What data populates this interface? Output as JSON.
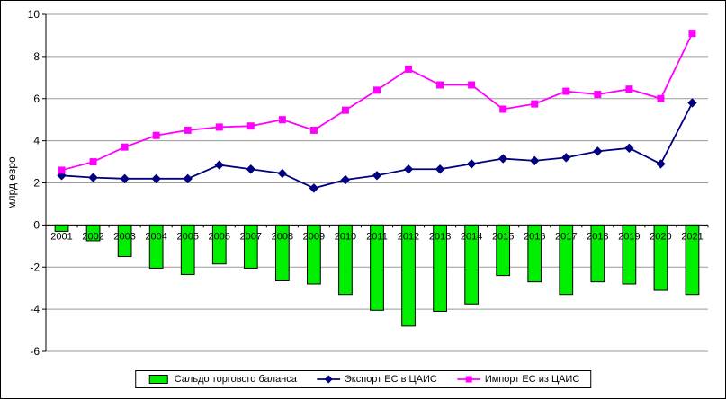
{
  "chart_data": {
    "type": "bar",
    "title": "",
    "ylabel": "млрд евро",
    "ylim": [
      -6,
      10
    ],
    "ytick_step": 2,
    "grid": true,
    "legend_position": "bottom",
    "categories": [
      "2001",
      "2002",
      "2003",
      "2004",
      "2005",
      "2006",
      "2007",
      "2008",
      "2009",
      "2010",
      "2011",
      "2012",
      "2013",
      "2014",
      "2015",
      "2016",
      "2017",
      "2018",
      "2019",
      "2020",
      "2021"
    ],
    "series": [
      {
        "name": "Сальдо торгового баланса",
        "type": "bar",
        "color": "#00EE00",
        "values": [
          -0.3,
          -0.75,
          -1.5,
          -2.05,
          -2.35,
          -1.85,
          -2.05,
          -2.65,
          -2.8,
          -3.3,
          -4.05,
          -4.8,
          -4.1,
          -3.75,
          -2.4,
          -2.7,
          -3.3,
          -2.7,
          -2.8,
          -3.1,
          -3.3
        ]
      },
      {
        "name": "Экспорт ЕС в ЦАИС",
        "type": "line",
        "marker": "diamond",
        "color": "#000080",
        "values": [
          2.35,
          2.25,
          2.2,
          2.2,
          2.2,
          2.85,
          2.65,
          2.45,
          1.75,
          2.15,
          2.35,
          2.65,
          2.65,
          2.9,
          3.15,
          3.05,
          3.2,
          3.5,
          3.65,
          2.9,
          5.8
        ]
      },
      {
        "name": "Импорт ЕС из ЦАИС",
        "type": "line",
        "marker": "square",
        "color": "#FF00FF",
        "values": [
          2.6,
          3.0,
          3.7,
          4.25,
          4.5,
          4.65,
          4.7,
          5.0,
          4.5,
          5.45,
          6.4,
          7.4,
          6.65,
          6.65,
          5.5,
          5.75,
          6.35,
          6.2,
          6.45,
          6.0,
          9.1
        ]
      }
    ],
    "colors": {
      "gridline": "#9a9a9a",
      "axis": "#000000",
      "bar_border": "#000000",
      "text": "#000000"
    }
  }
}
